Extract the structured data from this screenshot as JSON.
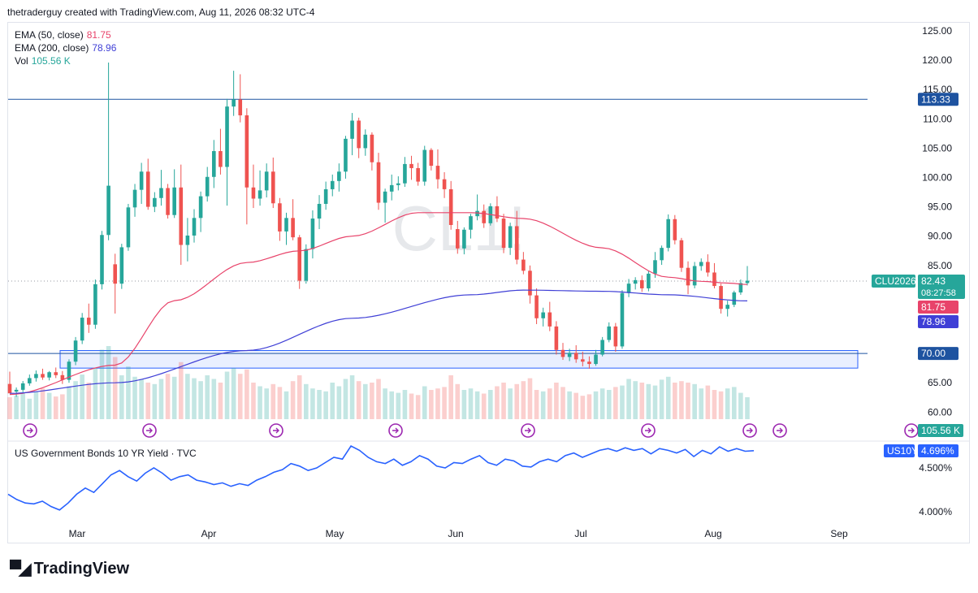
{
  "header": {
    "attribution": "thetraderguy created with TradingView.com, Aug 11, 2026 08:32 UTC-4"
  },
  "watermark": "CL1!",
  "legend": [
    {
      "label": "EMA (50, close)",
      "value": "81.75",
      "color": "#e8436a"
    },
    {
      "label": "EMA (200, close)",
      "value": "78.96",
      "color": "#3f3fd6"
    },
    {
      "label": "Vol",
      "value": "105.56 K",
      "color": "#26a69a"
    }
  ],
  "sub_pane": {
    "title": "US Government Bonds 10 YR Yield · TVC",
    "symbol": "US10Y",
    "value": "4.696%",
    "ticks": [
      "4.500%",
      "4.000%"
    ]
  },
  "price_labels": {
    "resistance": "113.33",
    "support": "70.00",
    "symbol": "CLU2026",
    "last": "82.43",
    "countdown": "08:27:58",
    "ema50": "81.75",
    "ema200": "78.96",
    "volume": "105.56 K"
  },
  "colors": {
    "up": "#26a69a",
    "down": "#ef5350",
    "ema50": "#e8436a",
    "ema200": "#3f3fd6",
    "line": "#2962ff",
    "zone": "#2962ff"
  },
  "logo": {
    "text": "TradingView"
  },
  "chart_data": {
    "type": "candlestick",
    "ylim": [
      57.5,
      126.5
    ],
    "y_ticks": [
      "125.00",
      "120.00",
      "115.00",
      "110.00",
      "105.00",
      "100.00",
      "95.00",
      "90.00",
      "85.00",
      "80.00",
      "75.00",
      "70.00",
      "65.00",
      "60.00"
    ],
    "x_ticks": [
      "Mar",
      "Apr",
      "May",
      "Jun",
      "Jul",
      "Aug",
      "Sep"
    ],
    "horizontal_levels": [
      113.33,
      70.0
    ],
    "support_zone": [
      67.5,
      70.5
    ],
    "candles": [
      [
        64.8,
        66.9,
        63.5,
        63.2
      ],
      [
        63.5,
        64.2,
        62.6,
        63.8
      ],
      [
        63.8,
        65.3,
        63.4,
        64.9
      ],
      [
        64.9,
        66.4,
        64.5,
        65.8
      ],
      [
        65.8,
        67.1,
        65.2,
        66.5
      ],
      [
        66.5,
        67.4,
        65.5,
        65.9
      ],
      [
        65.9,
        67.0,
        65.4,
        66.8
      ],
      [
        66.8,
        67.6,
        65.8,
        66.3
      ],
      [
        66.3,
        67.0,
        64.8,
        65.5
      ],
      [
        65.5,
        69.0,
        65.0,
        68.6
      ],
      [
        68.6,
        72.8,
        68.0,
        72.2
      ],
      [
        72.2,
        76.9,
        71.6,
        76.1
      ],
      [
        76.1,
        78.5,
        73.5,
        74.9
      ],
      [
        74.9,
        82.6,
        74.2,
        81.8
      ],
      [
        81.8,
        90.9,
        80.9,
        90.2
      ],
      [
        90.2,
        119.6,
        89.3,
        98.6
      ],
      [
        85.2,
        87.0,
        76.8,
        81.9
      ],
      [
        81.9,
        88.7,
        81.0,
        88.1
      ],
      [
        88.1,
        95.5,
        87.5,
        94.9
      ],
      [
        94.9,
        98.9,
        93.3,
        97.9
      ],
      [
        97.9,
        102.5,
        95.5,
        101.0
      ],
      [
        101.0,
        103.2,
        94.5,
        95.0
      ],
      [
        95.0,
        97.5,
        94.1,
        96.5
      ],
      [
        96.5,
        101.3,
        95.2,
        98.2
      ],
      [
        98.2,
        98.9,
        93.0,
        93.6
      ],
      [
        93.6,
        101.4,
        93.1,
        98.3
      ],
      [
        98.3,
        102.2,
        85.1,
        88.5
      ],
      [
        88.5,
        93.1,
        85.7,
        90.1
      ],
      [
        90.1,
        94.6,
        88.9,
        93.1
      ],
      [
        93.1,
        97.6,
        90.7,
        96.8
      ],
      [
        96.8,
        101.8,
        95.9,
        100.1
      ],
      [
        100.1,
        106.4,
        98.2,
        104.5
      ],
      [
        104.5,
        108.3,
        100.5,
        101.8
      ],
      [
        101.8,
        113.4,
        95.2,
        112.1
      ],
      [
        112.1,
        118.2,
        110.5,
        113.3
      ],
      [
        113.3,
        117.6,
        109.4,
        110.6
      ],
      [
        110.6,
        111.8,
        92.0,
        98.3
      ],
      [
        98.3,
        102.2,
        94.8,
        96.4
      ],
      [
        96.4,
        101.2,
        95.2,
        97.8
      ],
      [
        97.8,
        102.4,
        96.6,
        101.0
      ],
      [
        101.0,
        103.4,
        94.8,
        95.6
      ],
      [
        95.6,
        96.5,
        89.2,
        90.8
      ],
      [
        90.8,
        94.0,
        88.5,
        93.1
      ],
      [
        93.1,
        96.3,
        89.3,
        89.8
      ],
      [
        89.8,
        90.2,
        81.0,
        82.4
      ],
      [
        82.4,
        88.6,
        81.9,
        87.8
      ],
      [
        87.8,
        94.4,
        86.2,
        93.0
      ],
      [
        93.0,
        97.0,
        91.2,
        95.5
      ],
      [
        95.5,
        99.3,
        94.5,
        98.0
      ],
      [
        98.0,
        100.5,
        96.8,
        99.4
      ],
      [
        99.4,
        102.4,
        97.6,
        101.0
      ],
      [
        101.0,
        107.1,
        99.8,
        106.6
      ],
      [
        106.6,
        111.0,
        103.8,
        109.7
      ],
      [
        109.7,
        110.2,
        103.3,
        105.0
      ],
      [
        105.0,
        108.2,
        103.7,
        107.3
      ],
      [
        107.3,
        107.7,
        101.2,
        102.6
      ],
      [
        102.6,
        104.2,
        94.5,
        95.7
      ],
      [
        95.7,
        98.1,
        92.3,
        97.6
      ],
      [
        97.6,
        100.5,
        96.1,
        98.7
      ],
      [
        98.7,
        100.2,
        97.8,
        99.0
      ],
      [
        99.0,
        103.5,
        98.4,
        102.3
      ],
      [
        102.3,
        103.7,
        99.6,
        101.6
      ],
      [
        101.6,
        102.5,
        98.6,
        99.3
      ],
      [
        99.3,
        105.4,
        98.6,
        104.7
      ],
      [
        104.7,
        105.0,
        101.2,
        102.0
      ],
      [
        102.0,
        104.8,
        98.1,
        99.7
      ],
      [
        99.7,
        100.9,
        96.5,
        98.0
      ],
      [
        98.0,
        99.4,
        91.1,
        91.9
      ],
      [
        91.2,
        92.6,
        87.0,
        87.9
      ],
      [
        87.9,
        91.5,
        86.9,
        91.1
      ],
      [
        91.1,
        93.8,
        89.6,
        93.4
      ],
      [
        93.4,
        97.1,
        92.7,
        94.3
      ],
      [
        94.3,
        95.4,
        91.4,
        92.2
      ],
      [
        92.2,
        95.6,
        91.8,
        95.1
      ],
      [
        95.1,
        96.8,
        92.4,
        93.0
      ],
      [
        93.0,
        93.8,
        87.1,
        88.0
      ],
      [
        88.0,
        92.3,
        86.8,
        91.7
      ],
      [
        91.7,
        94.3,
        85.2,
        86.0
      ],
      [
        86.0,
        87.3,
        83.5,
        84.1
      ],
      [
        84.1,
        85.0,
        78.5,
        79.9
      ],
      [
        79.9,
        81.1,
        75.0,
        76.0
      ],
      [
        76.0,
        77.8,
        74.6,
        77.0
      ],
      [
        77.0,
        78.8,
        73.8,
        74.6
      ],
      [
        74.6,
        75.5,
        69.8,
        70.6
      ],
      [
        70.6,
        71.8,
        68.9,
        69.4
      ],
      [
        69.4,
        70.8,
        68.7,
        70.1
      ],
      [
        70.1,
        71.4,
        68.4,
        69.0
      ],
      [
        69.0,
        70.3,
        67.8,
        68.6
      ],
      [
        68.6,
        69.5,
        67.4,
        68.2
      ],
      [
        68.2,
        70.6,
        67.9,
        69.8
      ],
      [
        69.8,
        72.8,
        69.5,
        72.3
      ],
      [
        72.3,
        75.3,
        71.9,
        74.6
      ],
      [
        74.6,
        75.2,
        70.3,
        71.2
      ],
      [
        71.2,
        80.8,
        70.8,
        80.3
      ],
      [
        80.3,
        82.7,
        79.6,
        81.9
      ],
      [
        81.9,
        83.0,
        80.9,
        82.5
      ],
      [
        82.5,
        83.3,
        80.5,
        81.1
      ],
      [
        81.1,
        84.1,
        80.6,
        83.6
      ],
      [
        83.6,
        87.3,
        82.9,
        85.9
      ],
      [
        85.9,
        88.4,
        85.1,
        88.0
      ],
      [
        88.0,
        93.7,
        87.4,
        92.9
      ],
      [
        92.9,
        93.6,
        88.6,
        89.3
      ],
      [
        89.3,
        89.7,
        83.9,
        84.6
      ],
      [
        84.6,
        85.7,
        80.1,
        81.6
      ],
      [
        81.6,
        85.6,
        81.1,
        84.9
      ],
      [
        84.9,
        86.2,
        84.1,
        85.6
      ],
      [
        85.6,
        86.9,
        83.1,
        83.8
      ],
      [
        83.8,
        85.4,
        81.1,
        81.5
      ],
      [
        81.5,
        81.9,
        76.8,
        77.6
      ],
      [
        77.6,
        79.0,
        76.3,
        78.3
      ],
      [
        78.3,
        80.7,
        77.9,
        80.4
      ],
      [
        80.4,
        82.6,
        80.0,
        82.0
      ],
      [
        82.0,
        84.9,
        81.6,
        82.4
      ]
    ],
    "ema50": [
      [
        0,
        63.0
      ],
      [
        16,
        68.0
      ],
      [
        25,
        79.0
      ],
      [
        36,
        85.5
      ],
      [
        44,
        87.5
      ],
      [
        52,
        90.0
      ],
      [
        62,
        94.0
      ],
      [
        70,
        94.0
      ],
      [
        78,
        93.0
      ],
      [
        90,
        88.0
      ],
      [
        100,
        83.0
      ],
      [
        105,
        82.3
      ],
      [
        109,
        82.0
      ],
      [
        112,
        81.75
      ]
    ],
    "ema200": [
      [
        0,
        63.2
      ],
      [
        16,
        65.0
      ],
      [
        36,
        70.5
      ],
      [
        52,
        76.0
      ],
      [
        70,
        80.0
      ],
      [
        78,
        80.8
      ],
      [
        90,
        80.6
      ],
      [
        100,
        80.0
      ],
      [
        112,
        78.96
      ]
    ],
    "volume": [
      0.3,
      0.32,
      0.35,
      0.28,
      0.38,
      0.42,
      0.36,
      0.31,
      0.34,
      0.45,
      0.52,
      0.61,
      0.5,
      0.7,
      0.95,
      1.0,
      0.85,
      0.6,
      0.72,
      0.58,
      0.55,
      0.5,
      0.48,
      0.55,
      0.62,
      0.58,
      0.78,
      0.62,
      0.56,
      0.52,
      0.6,
      0.55,
      0.5,
      0.65,
      0.7,
      0.62,
      0.68,
      0.5,
      0.45,
      0.42,
      0.48,
      0.44,
      0.38,
      0.52,
      0.6,
      0.48,
      0.42,
      0.4,
      0.38,
      0.5,
      0.45,
      0.55,
      0.6,
      0.52,
      0.48,
      0.5,
      0.55,
      0.42,
      0.38,
      0.36,
      0.4,
      0.35,
      0.33,
      0.45,
      0.4,
      0.42,
      0.44,
      0.6,
      0.48,
      0.4,
      0.42,
      0.38,
      0.35,
      0.4,
      0.45,
      0.5,
      0.42,
      0.48,
      0.52,
      0.56,
      0.4,
      0.38,
      0.42,
      0.5,
      0.44,
      0.38,
      0.36,
      0.32,
      0.34,
      0.38,
      0.42,
      0.4,
      0.44,
      0.46,
      0.55,
      0.52,
      0.5,
      0.48,
      0.46,
      0.54,
      0.58,
      0.5,
      0.52,
      0.5,
      0.48,
      0.42,
      0.46,
      0.4,
      0.38,
      0.42,
      0.44,
      0.36,
      0.3
    ],
    "yield": [
      4.2,
      4.14,
      4.1,
      4.09,
      4.12,
      4.06,
      4.02,
      4.1,
      4.2,
      4.27,
      4.22,
      4.32,
      4.42,
      4.47,
      4.4,
      4.35,
      4.44,
      4.5,
      4.44,
      4.36,
      4.4,
      4.42,
      4.36,
      4.34,
      4.31,
      4.33,
      4.29,
      4.32,
      4.3,
      4.36,
      4.4,
      4.45,
      4.48,
      4.55,
      4.52,
      4.47,
      4.5,
      4.56,
      4.62,
      4.6,
      4.75,
      4.7,
      4.62,
      4.57,
      4.55,
      4.6,
      4.53,
      4.57,
      4.64,
      4.6,
      4.52,
      4.5,
      4.56,
      4.55,
      4.6,
      4.64,
      4.56,
      4.53,
      4.6,
      4.58,
      4.52,
      4.51,
      4.57,
      4.6,
      4.57,
      4.64,
      4.67,
      4.62,
      4.66,
      4.7,
      4.72,
      4.69,
      4.73,
      4.7,
      4.72,
      4.66,
      4.72,
      4.7,
      4.67,
      4.71,
      4.63,
      4.7,
      4.66,
      4.74,
      4.69,
      4.72,
      4.69,
      4.696
    ],
    "yield_lim": [
      3.85,
      4.78
    ]
  }
}
